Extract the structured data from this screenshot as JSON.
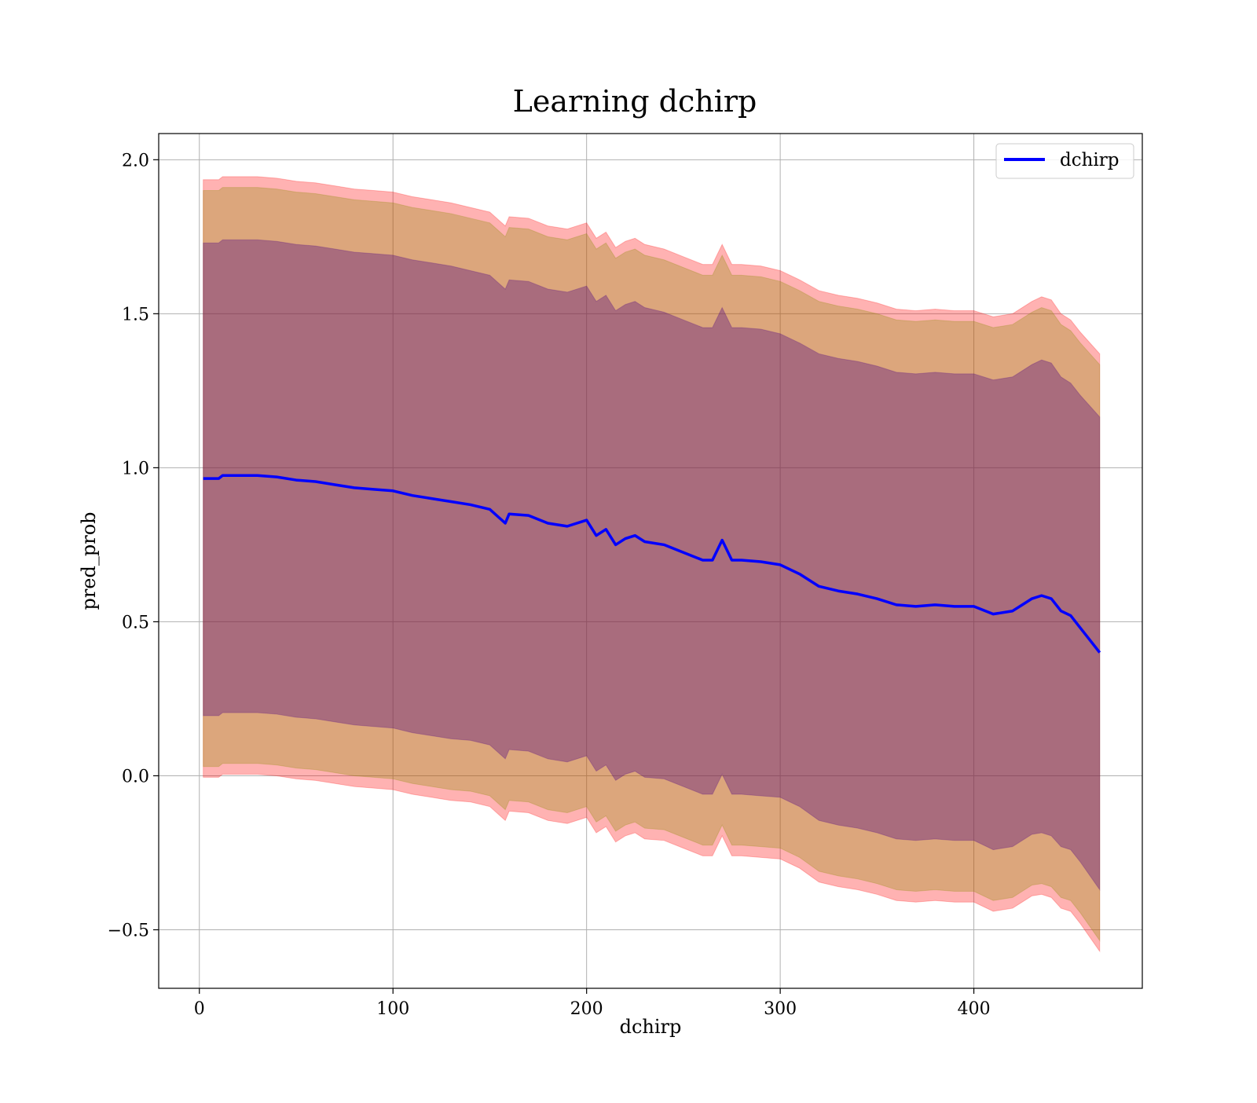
{
  "chart_data": {
    "type": "line",
    "title": "Learning dchirp",
    "xlabel": "dchirp",
    "ylabel": "pred_prob",
    "xlim": [
      -21,
      487
    ],
    "ylim": [
      -0.69,
      2.085
    ],
    "grid": true,
    "legend_position": "top-right",
    "x_ticks": [
      0,
      100,
      200,
      300,
      400
    ],
    "x_tick_labels": [
      "0",
      "100",
      "200",
      "300",
      "400"
    ],
    "y_ticks": [
      -0.5,
      0.0,
      0.5,
      1.0,
      1.5,
      2.0
    ],
    "y_tick_labels": [
      "−0.5",
      "0.0",
      "0.5",
      "1.0",
      "1.5",
      "2.0"
    ],
    "series": [
      {
        "name": "dchirp",
        "color": "#0000ff",
        "x": [
          2,
          10,
          12,
          20,
          30,
          40,
          50,
          60,
          70,
          80,
          90,
          100,
          110,
          120,
          130,
          140,
          150,
          158,
          160,
          170,
          180,
          190,
          200,
          205,
          210,
          215,
          220,
          225,
          230,
          240,
          250,
          260,
          265,
          270,
          275,
          280,
          290,
          300,
          310,
          320,
          330,
          340,
          350,
          360,
          370,
          380,
          390,
          400,
          410,
          420,
          425,
          430,
          435,
          440,
          445,
          450,
          455,
          460,
          465
        ],
        "y": [
          0.965,
          0.965,
          0.975,
          0.975,
          0.975,
          0.97,
          0.96,
          0.955,
          0.945,
          0.935,
          0.93,
          0.925,
          0.91,
          0.9,
          0.89,
          0.88,
          0.865,
          0.82,
          0.85,
          0.845,
          0.82,
          0.81,
          0.83,
          0.78,
          0.8,
          0.75,
          0.77,
          0.78,
          0.76,
          0.75,
          0.725,
          0.7,
          0.7,
          0.765,
          0.7,
          0.7,
          0.695,
          0.685,
          0.655,
          0.615,
          0.6,
          0.59,
          0.575,
          0.555,
          0.55,
          0.555,
          0.55,
          0.55,
          0.525,
          0.535,
          0.555,
          0.575,
          0.585,
          0.575,
          0.535,
          0.52,
          0.48,
          0.44,
          0.4
        ],
        "bands": [
          {
            "color": "#ff0000",
            "opacity": 0.3,
            "upper": [
              1.935,
              1.935,
              1.945,
              1.945,
              1.945,
              1.94,
              1.93,
              1.925,
              1.915,
              1.905,
              1.9,
              1.895,
              1.88,
              1.87,
              1.86,
              1.845,
              1.83,
              1.785,
              1.815,
              1.81,
              1.785,
              1.775,
              1.795,
              1.745,
              1.765,
              1.715,
              1.735,
              1.745,
              1.725,
              1.71,
              1.685,
              1.66,
              1.66,
              1.725,
              1.66,
              1.66,
              1.655,
              1.64,
              1.61,
              1.575,
              1.56,
              1.55,
              1.535,
              1.515,
              1.51,
              1.515,
              1.51,
              1.51,
              1.49,
              1.5,
              1.52,
              1.54,
              1.555,
              1.545,
              1.5,
              1.48,
              1.44,
              1.405,
              1.37
            ],
            "lower": [
              -0.005,
              -0.005,
              0.005,
              0.005,
              0.005,
              0.0,
              -0.01,
              -0.015,
              -0.025,
              -0.035,
              -0.04,
              -0.045,
              -0.06,
              -0.07,
              -0.08,
              -0.085,
              -0.1,
              -0.145,
              -0.115,
              -0.12,
              -0.145,
              -0.155,
              -0.135,
              -0.185,
              -0.165,
              -0.215,
              -0.195,
              -0.185,
              -0.205,
              -0.21,
              -0.235,
              -0.26,
              -0.26,
              -0.195,
              -0.26,
              -0.26,
              -0.265,
              -0.27,
              -0.3,
              -0.345,
              -0.36,
              -0.37,
              -0.385,
              -0.405,
              -0.41,
              -0.405,
              -0.41,
              -0.41,
              -0.44,
              -0.43,
              -0.41,
              -0.39,
              -0.385,
              -0.395,
              -0.43,
              -0.44,
              -0.48,
              -0.525,
              -0.57
            ]
          },
          {
            "color": "#8b8b00",
            "opacity": 0.3,
            "upper": [
              1.9,
              1.9,
              1.91,
              1.91,
              1.91,
              1.905,
              1.895,
              1.89,
              1.88,
              1.87,
              1.865,
              1.86,
              1.845,
              1.835,
              1.825,
              1.81,
              1.795,
              1.75,
              1.78,
              1.775,
              1.75,
              1.74,
              1.76,
              1.71,
              1.73,
              1.68,
              1.7,
              1.71,
              1.69,
              1.675,
              1.65,
              1.625,
              1.625,
              1.69,
              1.625,
              1.625,
              1.62,
              1.605,
              1.575,
              1.54,
              1.525,
              1.515,
              1.5,
              1.48,
              1.475,
              1.48,
              1.475,
              1.475,
              1.455,
              1.465,
              1.485,
              1.505,
              1.52,
              1.51,
              1.465,
              1.445,
              1.405,
              1.37,
              1.335
            ],
            "lower": [
              0.03,
              0.03,
              0.04,
              0.04,
              0.04,
              0.035,
              0.025,
              0.02,
              0.01,
              0.0,
              -0.005,
              -0.01,
              -0.025,
              -0.035,
              -0.045,
              -0.05,
              -0.065,
              -0.11,
              -0.08,
              -0.085,
              -0.11,
              -0.12,
              -0.1,
              -0.15,
              -0.13,
              -0.18,
              -0.16,
              -0.15,
              -0.17,
              -0.175,
              -0.2,
              -0.225,
              -0.225,
              -0.16,
              -0.225,
              -0.225,
              -0.23,
              -0.235,
              -0.265,
              -0.31,
              -0.325,
              -0.335,
              -0.35,
              -0.37,
              -0.375,
              -0.37,
              -0.375,
              -0.375,
              -0.405,
              -0.395,
              -0.375,
              -0.355,
              -0.35,
              -0.36,
              -0.395,
              -0.405,
              -0.445,
              -0.49,
              -0.535
            ]
          },
          {
            "color": "#4b0082",
            "opacity": 0.35,
            "upper": [
              1.73,
              1.73,
              1.74,
              1.74,
              1.74,
              1.735,
              1.725,
              1.72,
              1.71,
              1.7,
              1.695,
              1.69,
              1.675,
              1.665,
              1.655,
              1.64,
              1.625,
              1.58,
              1.61,
              1.605,
              1.58,
              1.57,
              1.59,
              1.54,
              1.56,
              1.51,
              1.53,
              1.54,
              1.52,
              1.505,
              1.48,
              1.455,
              1.455,
              1.52,
              1.455,
              1.455,
              1.45,
              1.435,
              1.405,
              1.37,
              1.355,
              1.345,
              1.33,
              1.31,
              1.305,
              1.31,
              1.305,
              1.305,
              1.285,
              1.295,
              1.315,
              1.335,
              1.35,
              1.34,
              1.295,
              1.275,
              1.235,
              1.2,
              1.165
            ],
            "lower": [
              0.195,
              0.195,
              0.205,
              0.205,
              0.205,
              0.2,
              0.19,
              0.185,
              0.175,
              0.165,
              0.16,
              0.155,
              0.14,
              0.13,
              0.12,
              0.115,
              0.1,
              0.055,
              0.085,
              0.08,
              0.055,
              0.045,
              0.065,
              0.015,
              0.035,
              -0.015,
              0.005,
              0.015,
              -0.005,
              -0.01,
              -0.035,
              -0.06,
              -0.06,
              0.005,
              -0.06,
              -0.06,
              -0.065,
              -0.07,
              -0.1,
              -0.145,
              -0.16,
              -0.17,
              -0.185,
              -0.205,
              -0.21,
              -0.205,
              -0.21,
              -0.21,
              -0.24,
              -0.23,
              -0.21,
              -0.19,
              -0.185,
              -0.195,
              -0.23,
              -0.24,
              -0.28,
              -0.325,
              -0.37
            ]
          }
        ]
      }
    ]
  }
}
